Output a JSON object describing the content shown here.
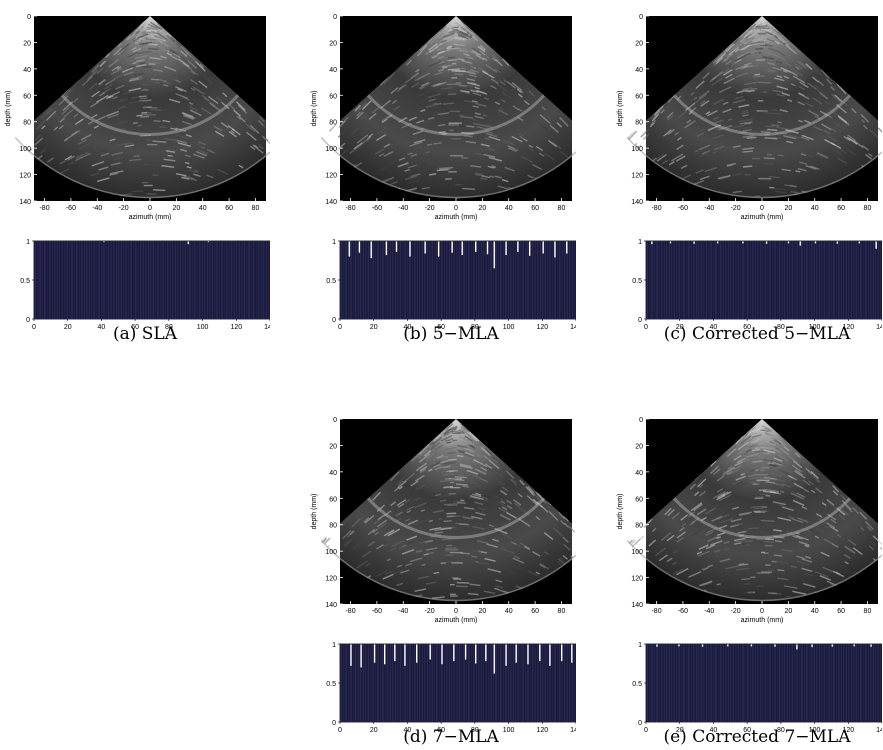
{
  "panels": [
    {
      "id": "a",
      "caption": "(a) SLA",
      "variant": "sla"
    },
    {
      "id": "b",
      "caption": "(b) 5−MLA",
      "variant": "mla5"
    },
    {
      "id": "c",
      "caption": "(c) Corrected 5−MLA",
      "variant": "corr"
    },
    {
      "id": "d",
      "caption": "(d) 7−MLA",
      "variant": "mla7"
    },
    {
      "id": "e",
      "caption": "(e) Corrected 7−MLA",
      "variant": "corr"
    }
  ],
  "image_axes": {
    "ylabel": "depth (mm)",
    "xlabel": "azimuth (mm)",
    "yticks": [
      0,
      20,
      40,
      60,
      80,
      100,
      120,
      140
    ],
    "xticks": [
      -80,
      -60,
      -40,
      -20,
      0,
      20,
      40,
      60,
      80
    ]
  },
  "chart_data": [
    {
      "type": "bar",
      "panel": "a",
      "xticks": [
        0,
        20,
        40,
        60,
        80,
        100,
        120,
        140
      ],
      "yticks": [
        0,
        0.5,
        1
      ],
      "ylim": [
        0,
        1
      ],
      "xlim": [
        0,
        140
      ],
      "dips": [
        {
          "x": 91,
          "y": 0.96
        },
        {
          "x": 41,
          "y": 0.985
        },
        {
          "x": 103,
          "y": 0.985
        }
      ]
    },
    {
      "type": "bar",
      "panel": "b",
      "xticks": [
        0,
        20,
        40,
        60,
        80,
        100,
        120,
        140
      ],
      "yticks": [
        0,
        0.5,
        1
      ],
      "ylim": [
        0,
        1
      ],
      "xlim": [
        0,
        140
      ],
      "dips": [
        {
          "x": 5,
          "y": 0.8
        },
        {
          "x": 11,
          "y": 0.85
        },
        {
          "x": 18,
          "y": 0.78
        },
        {
          "x": 27,
          "y": 0.82
        },
        {
          "x": 33,
          "y": 0.86
        },
        {
          "x": 41,
          "y": 0.8
        },
        {
          "x": 50,
          "y": 0.84
        },
        {
          "x": 58,
          "y": 0.8
        },
        {
          "x": 66,
          "y": 0.85
        },
        {
          "x": 72,
          "y": 0.82
        },
        {
          "x": 80,
          "y": 0.86
        },
        {
          "x": 87,
          "y": 0.83
        },
        {
          "x": 91,
          "y": 0.65
        },
        {
          "x": 98,
          "y": 0.82
        },
        {
          "x": 105,
          "y": 0.86
        },
        {
          "x": 112,
          "y": 0.81
        },
        {
          "x": 120,
          "y": 0.84
        },
        {
          "x": 127,
          "y": 0.79
        },
        {
          "x": 134,
          "y": 0.84
        }
      ]
    },
    {
      "type": "bar",
      "panel": "c",
      "xticks": [
        0,
        20,
        40,
        60,
        80,
        100,
        120,
        140
      ],
      "yticks": [
        0,
        0.5,
        1
      ],
      "ylim": [
        0,
        1
      ],
      "xlim": [
        0,
        140
      ],
      "dips": [
        {
          "x": 3,
          "y": 0.96
        },
        {
          "x": 14,
          "y": 0.97
        },
        {
          "x": 28,
          "y": 0.965
        },
        {
          "x": 42,
          "y": 0.97
        },
        {
          "x": 57,
          "y": 0.97
        },
        {
          "x": 71,
          "y": 0.965
        },
        {
          "x": 84,
          "y": 0.97
        },
        {
          "x": 91,
          "y": 0.94
        },
        {
          "x": 100,
          "y": 0.97
        },
        {
          "x": 113,
          "y": 0.965
        },
        {
          "x": 126,
          "y": 0.97
        },
        {
          "x": 136,
          "y": 0.9
        }
      ]
    },
    {
      "type": "bar",
      "panel": "d",
      "xticks": [
        0,
        20,
        40,
        60,
        80,
        100,
        120,
        140
      ],
      "yticks": [
        0,
        0.5,
        1
      ],
      "ylim": [
        0,
        1
      ],
      "xlim": [
        0,
        140
      ],
      "dips": [
        {
          "x": 6,
          "y": 0.72
        },
        {
          "x": 12,
          "y": 0.7
        },
        {
          "x": 20,
          "y": 0.76
        },
        {
          "x": 26,
          "y": 0.74
        },
        {
          "x": 32,
          "y": 0.78
        },
        {
          "x": 38,
          "y": 0.72
        },
        {
          "x": 45,
          "y": 0.76
        },
        {
          "x": 53,
          "y": 0.8
        },
        {
          "x": 60,
          "y": 0.74
        },
        {
          "x": 67,
          "y": 0.78
        },
        {
          "x": 74,
          "y": 0.8
        },
        {
          "x": 80,
          "y": 0.75
        },
        {
          "x": 86,
          "y": 0.78
        },
        {
          "x": 91,
          "y": 0.62
        },
        {
          "x": 98,
          "y": 0.72
        },
        {
          "x": 104,
          "y": 0.76
        },
        {
          "x": 111,
          "y": 0.74
        },
        {
          "x": 118,
          "y": 0.78
        },
        {
          "x": 124,
          "y": 0.72
        },
        {
          "x": 131,
          "y": 0.78
        },
        {
          "x": 137,
          "y": 0.76
        }
      ]
    },
    {
      "type": "bar",
      "panel": "e",
      "xticks": [
        0,
        20,
        40,
        60,
        80,
        100,
        120,
        140
      ],
      "yticks": [
        0,
        0.5,
        1
      ],
      "ylim": [
        0,
        1
      ],
      "xlim": [
        0,
        140
      ],
      "dips": [
        {
          "x": 6,
          "y": 0.965
        },
        {
          "x": 19,
          "y": 0.97
        },
        {
          "x": 33,
          "y": 0.965
        },
        {
          "x": 48,
          "y": 0.97
        },
        {
          "x": 62,
          "y": 0.97
        },
        {
          "x": 76,
          "y": 0.965
        },
        {
          "x": 89,
          "y": 0.93
        },
        {
          "x": 98,
          "y": 0.96
        },
        {
          "x": 110,
          "y": 0.965
        },
        {
          "x": 123,
          "y": 0.97
        },
        {
          "x": 133,
          "y": 0.965
        }
      ]
    }
  ]
}
